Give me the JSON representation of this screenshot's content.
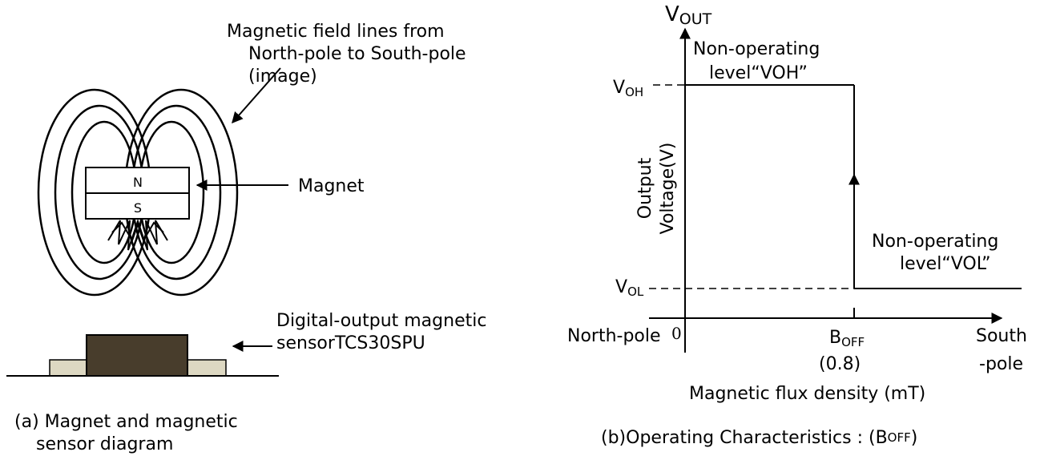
{
  "left": {
    "field_label": [
      "Magnetic field lines from",
      "North-pole to South-pole",
      "(image)"
    ],
    "magnet": {
      "north": "N",
      "south": "S",
      "label": "Magnet"
    },
    "sensor_label": [
      "Digital-output magnetic",
      "sensorTCS30SPU"
    ],
    "caption": [
      "(a) Magnet and magnetic",
      "sensor diagram"
    ]
  },
  "right": {
    "y_axis": {
      "main": "V",
      "sub": "OUT"
    },
    "y_label": [
      "Output",
      "Voltage(V)"
    ],
    "voh": {
      "main": "V",
      "sub": "OH"
    },
    "vol": {
      "main": "V",
      "sub": "OL"
    },
    "high_label": [
      "Non-operating",
      "level“VOH”"
    ],
    "low_label": [
      "Non-operating",
      "level“VOL”"
    ],
    "north": "North-pole",
    "origin": "0",
    "boff": {
      "main": "B",
      "sub": "OFF",
      "value": "(0.8)"
    },
    "south": [
      "South",
      "-pole"
    ],
    "x_label": "Magnetic flux density (mT)",
    "caption": {
      "main": "(b)Operating Characteristics : (B",
      "sub": "OFF",
      "end": ")"
    }
  }
}
